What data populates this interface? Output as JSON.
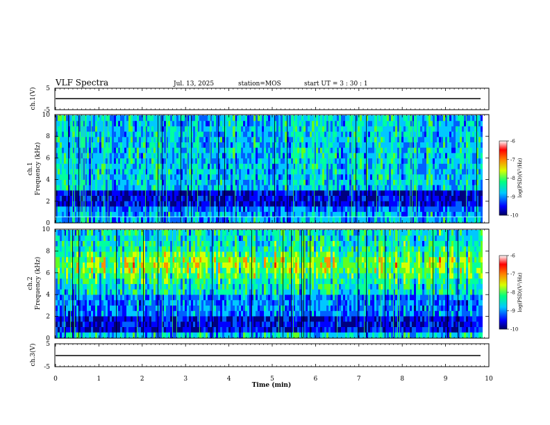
{
  "header": {
    "title": "VLF Spectra",
    "date": "Jul. 13, 2025",
    "station": "station=MOS",
    "start": "start UT =  3 : 30 : 1"
  },
  "chart_data": {
    "type": "heatmap",
    "x": {
      "label": "Time (min)",
      "range": [
        0,
        10
      ],
      "ticks": [
        0,
        1,
        2,
        3,
        4,
        5,
        6,
        7,
        8,
        9,
        10
      ],
      "data_end": 9.85
    },
    "panels": [
      {
        "id": "ch1-voltage",
        "ylabel": "ch.1(V)",
        "ylim": [
          -5,
          5
        ],
        "yticks": [
          5,
          -5
        ],
        "trace_level": -1.0
      },
      {
        "id": "ch1-spectrogram",
        "ylabel_line1": "ch.1",
        "ylabel_line2": "Frequency (kHz)",
        "ylim": [
          0,
          10
        ],
        "yticks": [
          0,
          2,
          4,
          6,
          8,
          10
        ],
        "band_note": "broadband activity 3–10 kHz, dark quiet band ~1.5–3 kHz, narrow line near 0.5 kHz"
      },
      {
        "id": "ch2-spectrogram",
        "ylabel_line1": "ch.2",
        "ylabel_line2": "Frequency (kHz)",
        "ylim": [
          0,
          10
        ],
        "yticks": [
          0,
          2,
          4,
          6,
          8,
          10
        ],
        "band_note": "intense band 4–9 kHz peaking ~6.5 kHz, weaker band ~2–4 kHz"
      },
      {
        "id": "ch2-voltage",
        "ylabel": "ch.3(V)",
        "ylim": [
          -5,
          5
        ],
        "yticks": [
          5,
          -5
        ],
        "trace_level": -1.0
      }
    ],
    "colorbar": {
      "label": "log(PSD)(V²/Hz)",
      "range": [
        -10,
        -6
      ],
      "ticks": [
        "-6",
        "-7",
        "-8",
        "-9",
        "-10"
      ],
      "colors": [
        "#000060",
        "#0000ff",
        "#00c8ff",
        "#00ff80",
        "#d8ff00",
        "#ff8000",
        "#ff0000",
        "#ffffff"
      ]
    },
    "grid": false
  }
}
